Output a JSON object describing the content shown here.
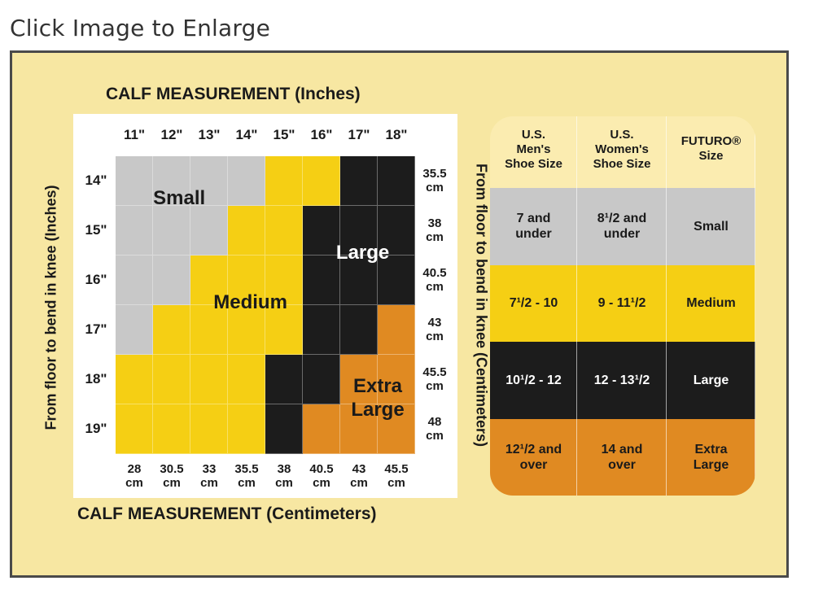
{
  "header": {
    "enlarge_link": "Click Image to Enlarge"
  },
  "chart": {
    "title_top": "CALF MEASUREMENT (Inches)",
    "title_bottom": "CALF MEASUREMENT (Centimeters)",
    "left_axis_label": "From floor to bend in knee (Inches)",
    "right_axis_label": "From floor to bend in knee (Centimeters)",
    "calf_inches": [
      "11\"",
      "12\"",
      "13\"",
      "14\"",
      "15\"",
      "16\"",
      "17\"",
      "18\""
    ],
    "calf_cm": [
      [
        "28",
        "cm"
      ],
      [
        "30.5",
        "cm"
      ],
      [
        "33",
        "cm"
      ],
      [
        "35.5",
        "cm"
      ],
      [
        "38",
        "cm"
      ],
      [
        "40.5",
        "cm"
      ],
      [
        "43",
        "cm"
      ],
      [
        "45.5",
        "cm"
      ]
    ],
    "height_inches": [
      "14\"",
      "15\"",
      "16\"",
      "17\"",
      "18\"",
      "19\""
    ],
    "height_cm": [
      [
        "35.5",
        "cm"
      ],
      [
        "38",
        "cm"
      ],
      [
        "40.5",
        "cm"
      ],
      [
        "43",
        "cm"
      ],
      [
        "45.5",
        "cm"
      ],
      [
        "48",
        "cm"
      ]
    ],
    "zones": {
      "small": [
        "Small"
      ],
      "medium": [
        "Medium"
      ],
      "large": [
        "Large"
      ],
      "extra_large": [
        "Extra",
        "Large"
      ]
    },
    "grid": [
      [
        "S",
        "S",
        "S",
        "S",
        "M",
        "M",
        "L",
        "L"
      ],
      [
        "S",
        "S",
        "S",
        "M",
        "M",
        "L",
        "L",
        "L"
      ],
      [
        "S",
        "S",
        "M",
        "M",
        "M",
        "L",
        "L",
        "L"
      ],
      [
        "S",
        "M",
        "M",
        "M",
        "M",
        "L",
        "L",
        "X"
      ],
      [
        "M",
        "M",
        "M",
        "M",
        "L",
        "L",
        "X",
        "X"
      ],
      [
        "M",
        "M",
        "M",
        "M",
        "L",
        "X",
        "X",
        "X"
      ]
    ],
    "colors": {
      "S": "#c8c8c8",
      "M": "#f5cf14",
      "L": "#1c1c1c",
      "X": "#e08a22"
    }
  },
  "size_table": {
    "headers": [
      [
        "U.S.",
        "Men's",
        "Shoe Size"
      ],
      [
        "U.S.",
        "Women's",
        "Shoe Size"
      ],
      [
        "FUTURO®",
        "Size"
      ]
    ],
    "rows": [
      {
        "men": [
          "7 and",
          "under"
        ],
        "women": [
          "8¹/2 and",
          "under"
        ],
        "size": [
          "Small"
        ],
        "bg": "#c8c8c8",
        "fg": "#1a1a1a"
      },
      {
        "men": [
          "7¹/2 - 10"
        ],
        "women": [
          "9 - 11¹/2"
        ],
        "size": [
          "Medium"
        ],
        "bg": "#f5cf14",
        "fg": "#1a1a1a"
      },
      {
        "men": [
          "10¹/2 - 12"
        ],
        "women": [
          "12 - 13¹/2"
        ],
        "size": [
          "Large"
        ],
        "bg": "#1c1c1c",
        "fg": "#ffffff"
      },
      {
        "men": [
          "12¹/2 and",
          "over"
        ],
        "women": [
          "14 and",
          "over"
        ],
        "size": [
          "Extra",
          "Large"
        ],
        "bg": "#e08a22",
        "fg": "#1a1a1a"
      }
    ]
  }
}
